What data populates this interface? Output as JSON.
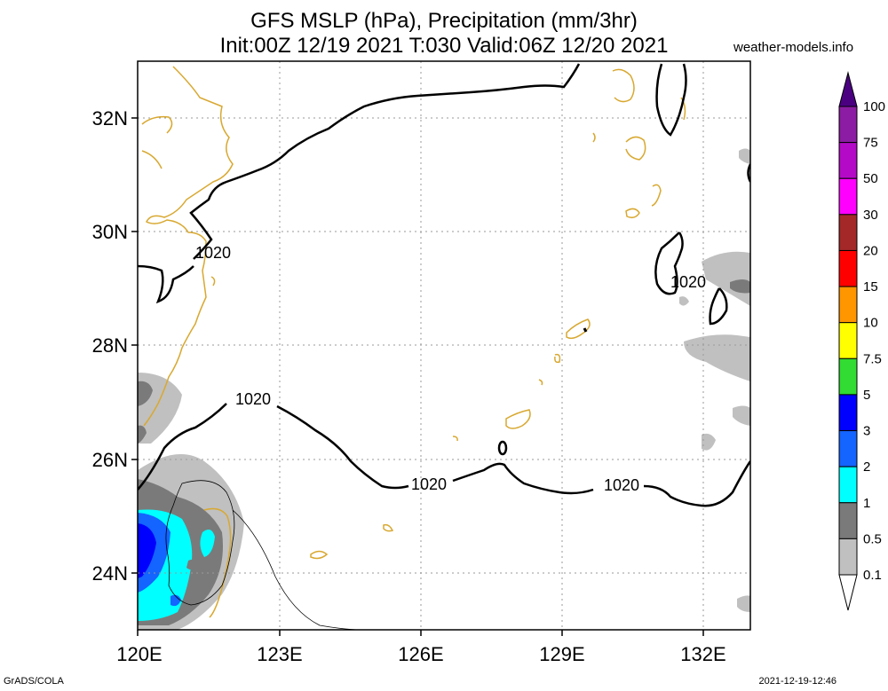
{
  "title": {
    "line1": "GFS MSLP (hPa), Precipitation (mm/3hr)",
    "line2": "Init:00Z 12/19 2021 T:030 Valid:06Z 12/20 2021"
  },
  "site": "weather-models.info",
  "credit": "GrADS/COLA",
  "timestamp": "2021-12-19-12:46",
  "map": {
    "lat_labels": [
      "32N",
      "30N",
      "28N",
      "26N",
      "24N"
    ],
    "lon_labels": [
      "120E",
      "123E",
      "126E",
      "129E",
      "132E"
    ],
    "isobar_labels": [
      "1020",
      "1020",
      "1020",
      "1020",
      "1020"
    ],
    "colors": {
      "coast": "#d8a830",
      "isobar": "#000000",
      "grid": "#9a9a9a"
    }
  },
  "colorbar": {
    "labels": [
      "100",
      "75",
      "50",
      "30",
      "20",
      "15",
      "10",
      "7.5",
      "5",
      "3",
      "2",
      "1",
      "0.5",
      "0.1"
    ],
    "colors": [
      "#8c1ca3",
      "#b40ac8",
      "#ff00ff",
      "#a42828",
      "#ff0000",
      "#ff9600",
      "#ffff00",
      "#32dc32",
      "#0000ff",
      "#1464ff",
      "#00ffff",
      "#7a7a7a",
      "#c0c0c0"
    ],
    "top_color": "#4b0082"
  }
}
